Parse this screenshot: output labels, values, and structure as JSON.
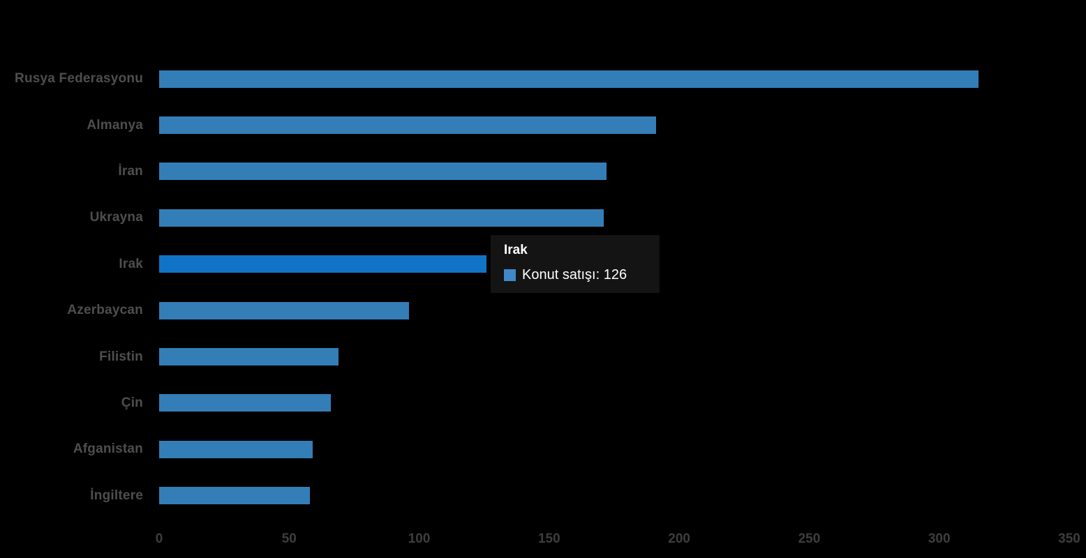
{
  "chart_data": {
    "type": "bar",
    "orientation": "horizontal",
    "title": "",
    "xlabel": "",
    "ylabel": "",
    "categories": [
      "Rusya Federasyonu",
      "Almanya",
      "İran",
      "Ukrayna",
      "Irak",
      "Azerbaycan",
      "Filistin",
      "Çin",
      "Afganistan",
      "İngiltere"
    ],
    "series": [
      {
        "name": "Konut satışı",
        "values": [
          315,
          191,
          172,
          171,
          126,
          96,
          69,
          66,
          59,
          58
        ]
      }
    ],
    "xlim": [
      0,
      350
    ],
    "x_ticks": [
      0,
      50,
      100,
      150,
      200,
      250,
      300,
      350
    ],
    "grid": false,
    "legend": "none",
    "highlight_index": 4,
    "colors": {
      "background": "#000000",
      "bar": "#347eb7",
      "bar_highlight": "#1173c6",
      "category_label": "#4e4e4e",
      "tick_label": "#3e3e3e"
    }
  },
  "tooltip": {
    "title": "Irak",
    "label": "Konut satışı: 126",
    "swatch_color": "#3f89c9",
    "background": "#141414",
    "text_color": "#ffffff"
  }
}
